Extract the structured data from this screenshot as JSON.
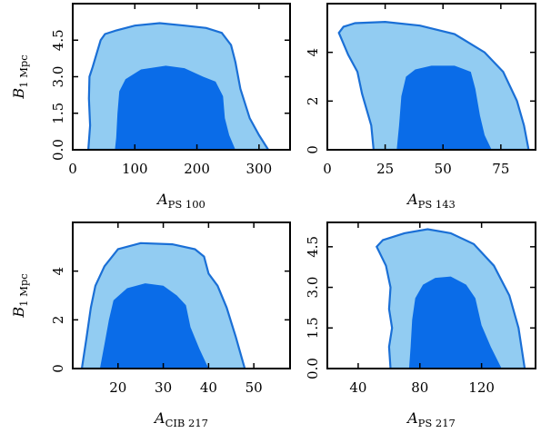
{
  "chart_data": [
    {
      "type": "contour",
      "panel": "top-left",
      "xlabel": "A",
      "xlabel_sub": "PS 100",
      "ylabel": "B",
      "ylabel_sub": "1 Mpc",
      "xlim": [
        0,
        350
      ],
      "ylim": [
        0,
        6
      ],
      "xticks": [
        0,
        100,
        200,
        300
      ],
      "xtick_labels": [
        "0",
        "100",
        "200",
        "300"
      ],
      "yticks": [
        0.0,
        1.5,
        3.0,
        4.5
      ],
      "ytick_labels": [
        "0.0",
        "1.5",
        "3.0",
        "4.5"
      ],
      "colors": {
        "outer": "#92ccf2",
        "inner": "#0a6ce8",
        "edge": "#1a6fd6"
      },
      "contours": {
        "outer_95": [
          [
            25,
            0
          ],
          [
            28,
            1.0
          ],
          [
            26,
            2.1
          ],
          [
            27,
            3.0
          ],
          [
            32,
            3.4
          ],
          [
            38,
            3.9
          ],
          [
            45,
            4.5
          ],
          [
            52,
            4.75
          ],
          [
            70,
            4.9
          ],
          [
            100,
            5.1
          ],
          [
            140,
            5.2
          ],
          [
            180,
            5.1
          ],
          [
            215,
            5.0
          ],
          [
            240,
            4.8
          ],
          [
            255,
            4.3
          ],
          [
            262,
            3.6
          ],
          [
            270,
            2.5
          ],
          [
            285,
            1.3
          ],
          [
            300,
            0.6
          ],
          [
            315,
            0
          ]
        ],
        "inner_68": [
          [
            68,
            0
          ],
          [
            70,
            0.5
          ],
          [
            72,
            1.5
          ],
          [
            75,
            2.4
          ],
          [
            85,
            2.9
          ],
          [
            110,
            3.3
          ],
          [
            150,
            3.45
          ],
          [
            180,
            3.35
          ],
          [
            210,
            3.0
          ],
          [
            230,
            2.8
          ],
          [
            242,
            2.2
          ],
          [
            245,
            1.3
          ],
          [
            252,
            0.6
          ],
          [
            262,
            0
          ]
        ]
      }
    },
    {
      "type": "contour",
      "panel": "top-right",
      "xlabel": "A",
      "xlabel_sub": "PS 143",
      "ylabel": "",
      "ylabel_sub": "",
      "xlim": [
        0,
        90
      ],
      "ylim": [
        0,
        6
      ],
      "xticks": [
        0,
        25,
        50,
        75
      ],
      "xtick_labels": [
        "0",
        "25",
        "50",
        "75"
      ],
      "yticks": [
        0,
        2,
        4
      ],
      "ytick_labels": [
        "0",
        "2",
        "4"
      ],
      "colors": {
        "outer": "#92ccf2",
        "inner": "#0a6ce8",
        "edge": "#1a6fd6"
      },
      "contours": {
        "outer_95": [
          [
            20,
            0
          ],
          [
            19,
            1.0
          ],
          [
            15,
            2.3
          ],
          [
            13,
            3.2
          ],
          [
            9,
            3.9
          ],
          [
            5,
            4.8
          ],
          [
            7,
            5.05
          ],
          [
            12,
            5.2
          ],
          [
            25,
            5.25
          ],
          [
            40,
            5.1
          ],
          [
            55,
            4.75
          ],
          [
            68,
            4.0
          ],
          [
            76,
            3.2
          ],
          [
            82,
            2.0
          ],
          [
            85,
            1.0
          ],
          [
            87,
            0
          ]
        ],
        "inner_68": [
          [
            30,
            0
          ],
          [
            31,
            1.0
          ],
          [
            32,
            2.2
          ],
          [
            34,
            3.0
          ],
          [
            38,
            3.3
          ],
          [
            45,
            3.45
          ],
          [
            55,
            3.45
          ],
          [
            62,
            3.2
          ],
          [
            64,
            2.5
          ],
          [
            66,
            1.4
          ],
          [
            68,
            0.6
          ],
          [
            71,
            0
          ]
        ]
      }
    },
    {
      "type": "contour",
      "panel": "bottom-left",
      "xlabel": "A",
      "xlabel_sub": "CIB 217",
      "ylabel": "B",
      "ylabel_sub": "1 Mpc",
      "xlim": [
        10,
        58
      ],
      "ylim": [
        0,
        6
      ],
      "xticks": [
        20,
        30,
        40,
        50
      ],
      "xtick_labels": [
        "20",
        "30",
        "40",
        "50"
      ],
      "yticks": [
        0,
        2,
        4
      ],
      "ytick_labels": [
        "0",
        "2",
        "4"
      ],
      "colors": {
        "outer": "#92ccf2",
        "inner": "#0a6ce8",
        "edge": "#1a6fd6"
      },
      "contours": {
        "outer_95": [
          [
            12,
            0
          ],
          [
            13,
            1.2
          ],
          [
            14,
            2.5
          ],
          [
            15,
            3.4
          ],
          [
            17,
            4.2
          ],
          [
            20,
            4.9
          ],
          [
            25,
            5.15
          ],
          [
            32,
            5.1
          ],
          [
            37,
            4.9
          ],
          [
            39,
            4.6
          ],
          [
            40,
            3.9
          ],
          [
            42,
            3.4
          ],
          [
            44,
            2.5
          ],
          [
            46,
            1.3
          ],
          [
            48,
            0
          ]
        ],
        "inner_68": [
          [
            16,
            0
          ],
          [
            17,
            1.0
          ],
          [
            18,
            2.0
          ],
          [
            19,
            2.8
          ],
          [
            22,
            3.3
          ],
          [
            26,
            3.5
          ],
          [
            30,
            3.4
          ],
          [
            33,
            3.0
          ],
          [
            35,
            2.6
          ],
          [
            36,
            1.7
          ],
          [
            38,
            0.8
          ],
          [
            40,
            0
          ]
        ]
      }
    },
    {
      "type": "contour",
      "panel": "bottom-right",
      "xlabel": "A",
      "xlabel_sub": "PS 217",
      "ylabel": "",
      "ylabel_sub": "",
      "xlim": [
        20,
        155
      ],
      "ylim": [
        0,
        5.4
      ],
      "xticks": [
        40,
        80,
        120
      ],
      "xtick_labels": [
        "40",
        "80",
        "120"
      ],
      "yticks": [
        0.0,
        1.5,
        3.0,
        4.5
      ],
      "ytick_labels": [
        "0.0",
        "1.5",
        "3.0",
        "4.5"
      ],
      "colors": {
        "outer": "#92ccf2",
        "inner": "#0a6ce8",
        "edge": "#1a6fd6"
      },
      "contours": {
        "outer_95": [
          [
            61,
            0
          ],
          [
            60,
            0.8
          ],
          [
            62,
            1.5
          ],
          [
            60,
            2.2
          ],
          [
            61,
            3.0
          ],
          [
            58,
            3.8
          ],
          [
            52,
            4.5
          ],
          [
            56,
            4.75
          ],
          [
            70,
            5.0
          ],
          [
            85,
            5.15
          ],
          [
            100,
            5.0
          ],
          [
            115,
            4.6
          ],
          [
            128,
            3.8
          ],
          [
            138,
            2.7
          ],
          [
            144,
            1.5
          ],
          [
            148,
            0
          ]
        ],
        "inner_68": [
          [
            73,
            0
          ],
          [
            74,
            0.8
          ],
          [
            75,
            1.8
          ],
          [
            77,
            2.6
          ],
          [
            82,
            3.1
          ],
          [
            90,
            3.35
          ],
          [
            100,
            3.4
          ],
          [
            110,
            3.1
          ],
          [
            116,
            2.6
          ],
          [
            120,
            1.6
          ],
          [
            126,
            0.8
          ],
          [
            133,
            0
          ]
        ]
      }
    }
  ]
}
